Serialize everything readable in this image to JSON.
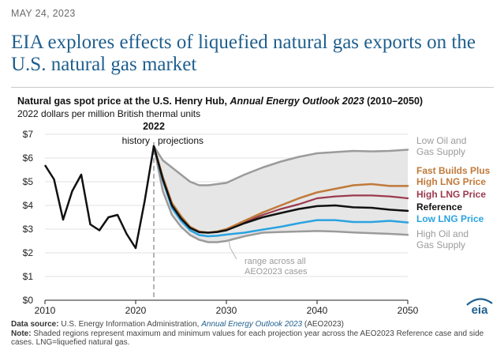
{
  "header": {
    "date": "MAY 24, 2023",
    "headline": "EIA explores effects of liquefied natural gas exports on the U.S. natural gas market"
  },
  "chart_data": {
    "type": "line",
    "title_prefix": "Natural gas spot price at the U.S. Henry Hub, ",
    "title_italic": "Annual Energy Outlook 2023",
    "title_suffix": " (2010–2050)",
    "subtitle": "2022 dollars per million British thermal units",
    "xlim": [
      2010,
      2050
    ],
    "ylim": [
      0,
      7
    ],
    "x_ticks": [
      2010,
      2020,
      2030,
      2040,
      2050
    ],
    "x_tick_labels": [
      "2010",
      "2020",
      "2030",
      "2040",
      "2050"
    ],
    "y_ticks": [
      0,
      1,
      2,
      3,
      4,
      5,
      6,
      7
    ],
    "y_tick_labels": [
      "$0",
      "$1",
      "$2",
      "$3",
      "$4",
      "$5",
      "$6",
      "$7"
    ],
    "divider": {
      "x": 2022,
      "label": "2022",
      "left_label": "history",
      "right_label": "projections"
    },
    "range_note": [
      "range across all",
      "AEO2023 cases"
    ],
    "range_band": {
      "x": [
        2022,
        2023,
        2024,
        2025,
        2026,
        2027,
        2028,
        2029,
        2030,
        2032,
        2034,
        2036,
        2038,
        2040,
        2042,
        2044,
        2046,
        2048,
        2050
      ],
      "upper": [
        6.5,
        5.9,
        5.6,
        5.3,
        5.0,
        4.85,
        4.85,
        4.9,
        4.95,
        5.3,
        5.6,
        5.85,
        6.05,
        6.2,
        6.25,
        6.3,
        6.28,
        6.3,
        6.35
      ],
      "lower": [
        6.5,
        4.6,
        3.6,
        3.1,
        2.75,
        2.55,
        2.45,
        2.45,
        2.5,
        2.7,
        2.85,
        2.88,
        2.9,
        2.92,
        2.9,
        2.86,
        2.83,
        2.8,
        2.76
      ]
    },
    "history": {
      "x": [
        2010,
        2011,
        2012,
        2013,
        2014,
        2015,
        2016,
        2017,
        2018,
        2019,
        2020,
        2021,
        2022
      ],
      "values": [
        5.7,
        5.1,
        3.4,
        4.6,
        5.3,
        3.2,
        2.95,
        3.5,
        3.6,
        2.8,
        2.2,
        4.2,
        6.5
      ]
    },
    "series": [
      {
        "name": "Low Oil and Gas Supply",
        "label_lines": [
          "Low Oil and",
          "Gas Supply"
        ],
        "color": "#9b9b9b",
        "width": 2.5,
        "x": [
          2022,
          2023,
          2024,
          2025,
          2026,
          2027,
          2028,
          2029,
          2030,
          2032,
          2034,
          2036,
          2038,
          2040,
          2042,
          2044,
          2046,
          2048,
          2050
        ],
        "values": [
          6.5,
          5.9,
          5.6,
          5.3,
          5.0,
          4.85,
          4.85,
          4.9,
          4.95,
          5.3,
          5.6,
          5.85,
          6.05,
          6.2,
          6.25,
          6.3,
          6.28,
          6.3,
          6.35
        ]
      },
      {
        "name": "Fast Builds Plus High LNG Price",
        "label_lines": [
          "Fast Builds Plus",
          "High LNG Price"
        ],
        "color": "#c07a3a",
        "width": 2.5,
        "x": [
          2022,
          2023,
          2024,
          2025,
          2026,
          2027,
          2028,
          2029,
          2030,
          2032,
          2034,
          2036,
          2038,
          2040,
          2042,
          2044,
          2046,
          2048,
          2050
        ],
        "values": [
          6.5,
          5.2,
          4.1,
          3.55,
          3.1,
          2.9,
          2.85,
          2.9,
          3.0,
          3.35,
          3.7,
          4.0,
          4.3,
          4.55,
          4.7,
          4.85,
          4.9,
          4.82,
          4.82
        ]
      },
      {
        "name": "High LNG Price",
        "label_lines": [
          "High LNG Price"
        ],
        "color": "#9b3a4e",
        "width": 2.2,
        "x": [
          2022,
          2023,
          2024,
          2025,
          2026,
          2027,
          2028,
          2029,
          2030,
          2032,
          2034,
          2036,
          2038,
          2040,
          2042,
          2044,
          2046,
          2048,
          2050
        ],
        "values": [
          6.5,
          5.15,
          4.05,
          3.5,
          3.08,
          2.88,
          2.85,
          2.88,
          2.97,
          3.3,
          3.6,
          3.85,
          4.05,
          4.3,
          4.38,
          4.42,
          4.42,
          4.38,
          4.3
        ]
      },
      {
        "name": "Reference",
        "label_lines": [
          "Reference"
        ],
        "color": "#111111",
        "width": 2.5,
        "x": [
          2022,
          2023,
          2024,
          2025,
          2026,
          2027,
          2028,
          2029,
          2030,
          2032,
          2034,
          2036,
          2038,
          2040,
          2042,
          2044,
          2046,
          2048,
          2050
        ],
        "values": [
          6.5,
          5.1,
          4.0,
          3.45,
          3.05,
          2.87,
          2.85,
          2.88,
          2.95,
          3.25,
          3.5,
          3.68,
          3.85,
          3.97,
          4.0,
          3.92,
          3.9,
          3.82,
          3.77
        ]
      },
      {
        "name": "Low LNG Price",
        "label_lines": [
          "Low LNG Price"
        ],
        "color": "#2aa3e0",
        "width": 2.5,
        "x": [
          2022,
          2023,
          2024,
          2025,
          2026,
          2027,
          2028,
          2029,
          2030,
          2032,
          2034,
          2036,
          2038,
          2040,
          2042,
          2044,
          2046,
          2048,
          2050
        ],
        "values": [
          6.5,
          5.05,
          3.9,
          3.35,
          2.95,
          2.75,
          2.7,
          2.72,
          2.77,
          2.85,
          2.98,
          3.1,
          3.25,
          3.38,
          3.38,
          3.3,
          3.3,
          3.35,
          3.28
        ]
      },
      {
        "name": "High Oil and Gas Supply",
        "label_lines": [
          "High Oil and",
          "Gas Supply"
        ],
        "color": "#9b9b9b",
        "width": 2.5,
        "x": [
          2022,
          2023,
          2024,
          2025,
          2026,
          2027,
          2028,
          2029,
          2030,
          2032,
          2034,
          2036,
          2038,
          2040,
          2042,
          2044,
          2046,
          2048,
          2050
        ],
        "values": [
          6.5,
          4.6,
          3.6,
          3.1,
          2.75,
          2.55,
          2.45,
          2.45,
          2.5,
          2.7,
          2.85,
          2.88,
          2.9,
          2.92,
          2.9,
          2.86,
          2.83,
          2.8,
          2.76
        ]
      }
    ]
  },
  "footer": {
    "source_label": "Data source:",
    "source_text": " U.S. Energy Information Administration, ",
    "source_italic": "Annual Energy Outlook 2023",
    "source_end": " (AEO2023)",
    "note_label": "Note:",
    "note_text": " Shaded regions represent maximum and minimum values for each projection year across the AEO2023 Reference case and side cases. LNG=liquefied natural gas."
  },
  "logo": {
    "text": "eia",
    "color": "#1f5f8e"
  }
}
